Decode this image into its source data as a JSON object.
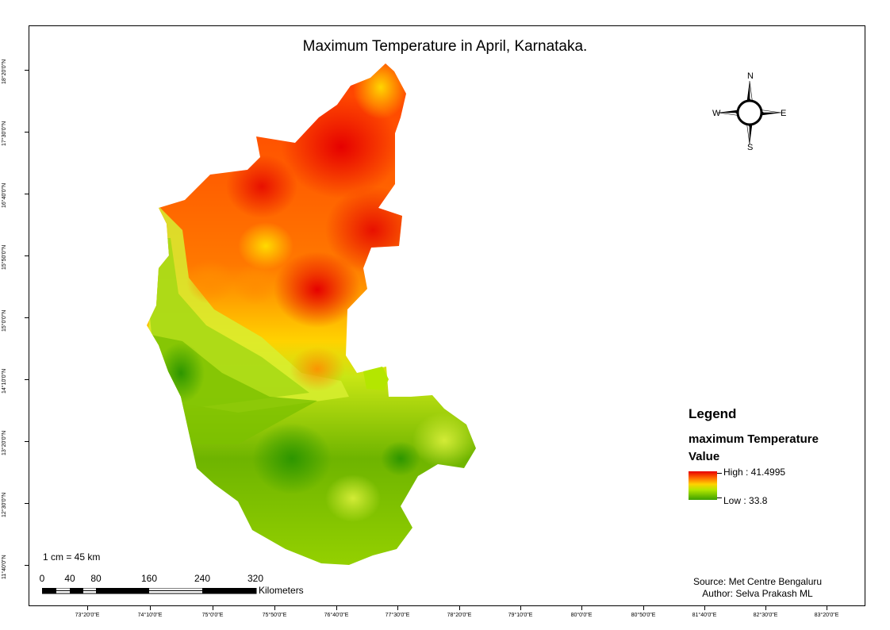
{
  "map": {
    "title": "Maximum Temperature in April, Karnataka.",
    "latitude_labels": [
      "18°20'0\"N",
      "17°30'0\"N",
      "16°40'0\"N",
      "15°50'0\"N",
      "15°0'0\"N",
      "14°10'0\"N",
      "13°20'0\"N",
      "12°30'0\"N",
      "11°40'0\"N"
    ],
    "longitude_labels": [
      "73°20'0\"E",
      "74°10'0\"E",
      "75°0'0\"E",
      "75°50'0\"E",
      "76°40'0\"E",
      "77°30'0\"E",
      "78°20'0\"E",
      "79°10'0\"E",
      "80°0'0\"E",
      "80°50'0\"E",
      "81°40'0\"E",
      "82°30'0\"E",
      "83°20'0\"E"
    ]
  },
  "compass": {
    "north": "N",
    "south": "S",
    "east": "E",
    "west": "W",
    "icon": "north-arrow-icon"
  },
  "legend": {
    "title": "Legend",
    "field": "maximum Temperature",
    "subtitle": "Value",
    "high_label": "High : 41.4995",
    "low_label": "Low : 33.8",
    "high_value": 41.4995,
    "low_value": 33.8,
    "colors": [
      "#e60000",
      "#ff6400",
      "#ffd200",
      "#b4e600",
      "#3ca000"
    ]
  },
  "scale": {
    "note": "1 cm = 45 km",
    "labels": [
      "0",
      "40",
      "80",
      "160",
      "240",
      "320"
    ],
    "unit": "Kilometers"
  },
  "credits": {
    "source": "Source: Met Centre Bengaluru",
    "author": "Author: Selva Prakash ML"
  }
}
